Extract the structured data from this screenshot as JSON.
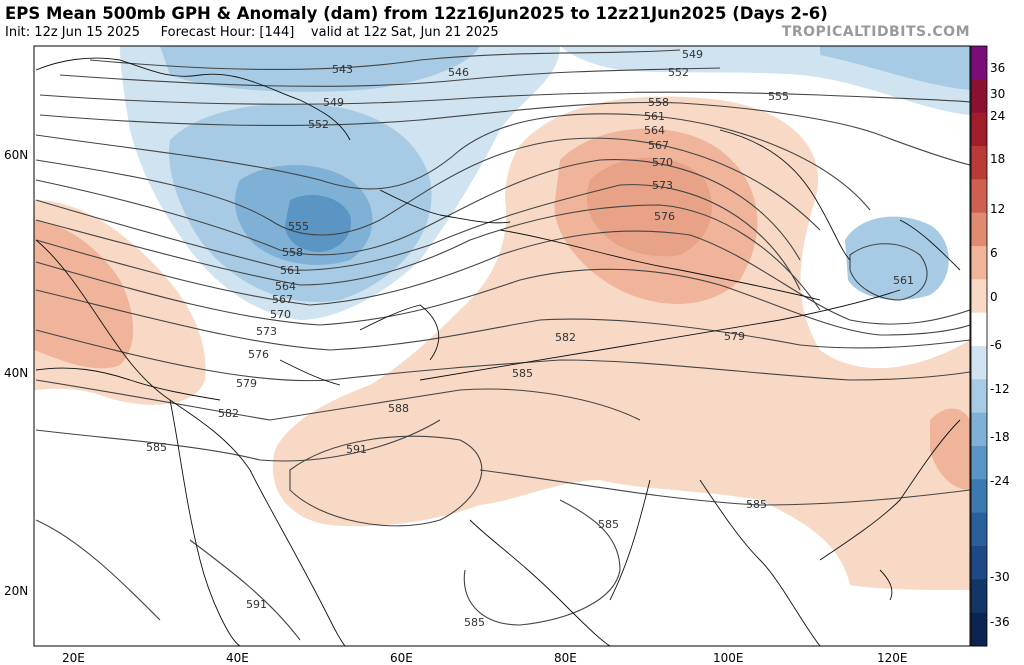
{
  "header": {
    "title": "EPS Mean 500mb GPH & Anomaly (dam) from 12z16Jun2025 to 12z21Jun2025 (Days 2-6)",
    "subtitle_init": "Init: 12z Jun 15 2025",
    "subtitle_forecast": "Forecast Hour: [144]",
    "subtitle_valid": "valid at 12z Sat, Jun 21 2025",
    "brand": "TROPICALTIDBITS.COM"
  },
  "axes": {
    "lat_labels": [
      "60N",
      "40N",
      "20N"
    ],
    "lon_labels": [
      "20E",
      "40E",
      "60E",
      "80E",
      "100E",
      "120E"
    ]
  },
  "colorbar": {
    "labels": [
      "36",
      "30",
      "24",
      "18",
      "12",
      "6",
      "0",
      "-6",
      "-12",
      "-18",
      "-24",
      "-30",
      "-36"
    ],
    "colors": [
      "#7a0d7a",
      "#8c1030",
      "#a01d2a",
      "#b93a36",
      "#cf5f4f",
      "#e08a70",
      "#efb49a",
      "#f8d9c6",
      "#ffffff",
      "#cfe3f0",
      "#a7cbe4",
      "#7fb1d6",
      "#5b95c4",
      "#3d79b1",
      "#2a5f9c",
      "#1d4a85",
      "#133669",
      "#0b2550"
    ]
  },
  "contour_labels": [
    "543",
    "546",
    "549",
    "552",
    "549",
    "552",
    "555",
    "558",
    "561",
    "564",
    "567",
    "570",
    "573",
    "576",
    "555",
    "558",
    "561",
    "564",
    "567",
    "570",
    "573",
    "576",
    "579",
    "582",
    "585",
    "588",
    "591",
    "582",
    "579",
    "585",
    "561",
    "585",
    "585",
    "591",
    "585"
  ]
}
